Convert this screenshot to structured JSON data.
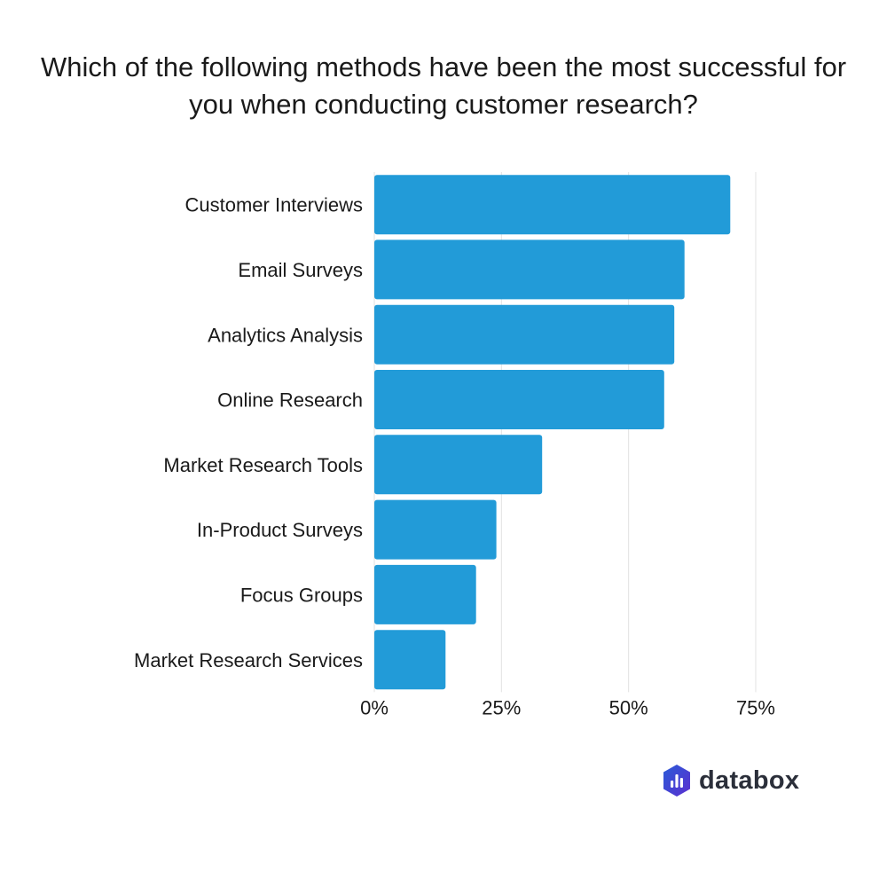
{
  "chart_data": {
    "type": "bar",
    "orientation": "horizontal",
    "title": "Which of the following methods have been the most successful for you when conducting customer research?",
    "categories": [
      "Customer Interviews",
      "Email Surveys",
      "Analytics Analysis",
      "Online Research",
      "Market Research Tools",
      "In-Product Surveys",
      "Focus Groups",
      "Market Research Services"
    ],
    "values": [
      70,
      61,
      59,
      57,
      33,
      24,
      20,
      14
    ],
    "unit": "%",
    "xlim": [
      0,
      75
    ],
    "xticks": [
      0,
      25,
      50,
      75
    ],
    "xtick_labels": [
      "0%",
      "25%",
      "50%",
      "75%"
    ],
    "grid": true,
    "bar_color": "#229bd8",
    "grid_color": "#e2e2e2"
  },
  "branding": {
    "logo_text": "databox",
    "logo_colors": [
      "#2a5bd7",
      "#5b2fd0"
    ]
  }
}
